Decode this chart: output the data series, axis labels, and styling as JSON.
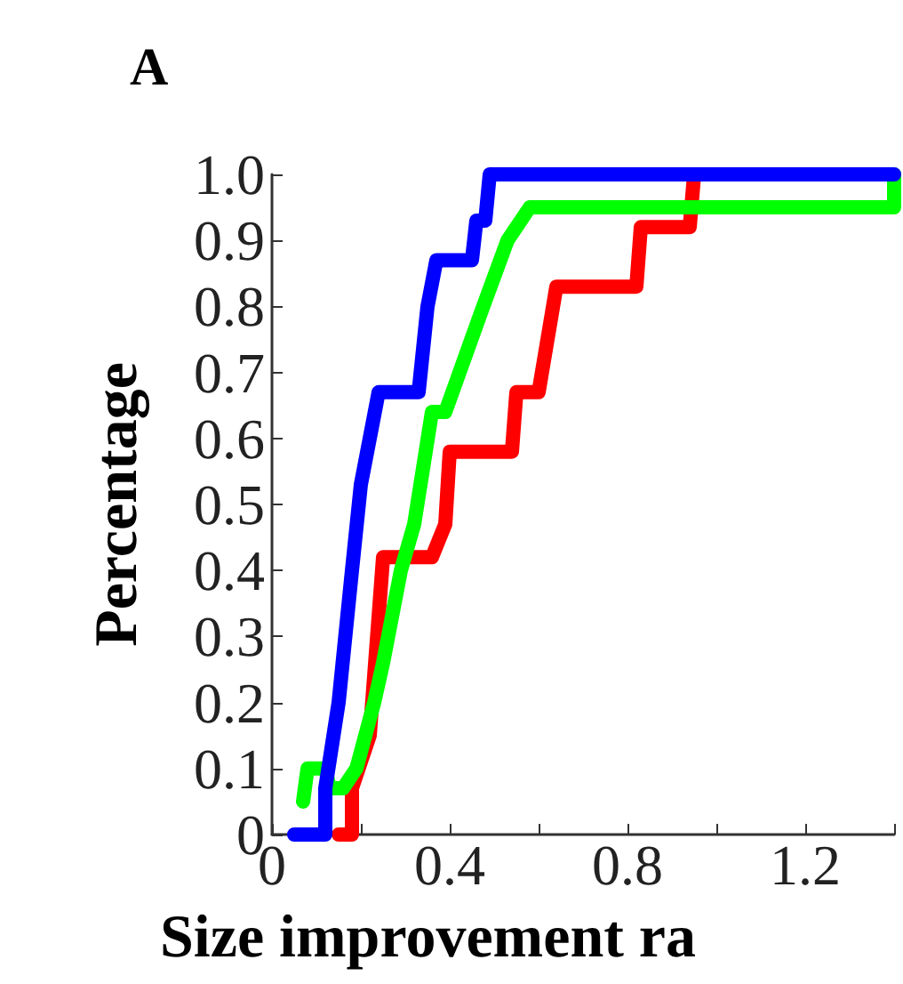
{
  "chart_data": {
    "type": "line",
    "xlabel": "Size improvement ra",
    "ylabel": "Percentage",
    "annotations": [
      "A"
    ],
    "xlim": [
      0,
      1.4
    ],
    "xticks": [
      0,
      {
        "value": 0.2,
        "label": null
      },
      0.4,
      {
        "value": 0.6,
        "label": null
      },
      0.8,
      {
        "value": 1.0,
        "label": null
      },
      1.2,
      {
        "value": 1.4,
        "label": null
      }
    ],
    "ylim": [
      0,
      1
    ],
    "yticks": [
      0,
      0.1,
      0.2,
      0.3,
      0.4,
      0.5,
      0.6,
      0.7,
      0.8,
      0.9,
      {
        "value": 1,
        "label": "1.0"
      }
    ],
    "marker": "none",
    "line_style": "solid",
    "series": [
      {
        "color": "#ff0000",
        "x": [
          0.15,
          0.18,
          0.18,
          0.22,
          0.25,
          0.36,
          0.39,
          0.4,
          0.54,
          0.55,
          0.6,
          0.62,
          0.64,
          0.82,
          0.83,
          0.94,
          0.95
        ],
        "values": [
          0,
          0,
          0.07,
          0.15,
          0.42,
          0.42,
          0.47,
          0.58,
          0.58,
          0.67,
          0.67,
          0.75,
          0.83,
          0.83,
          0.92,
          0.92,
          1.0
        ]
      },
      {
        "color": "#00ff00",
        "x": [
          0.07,
          0.08,
          0.12,
          0.13,
          0.16,
          0.19,
          0.23,
          0.25,
          0.29,
          0.32,
          0.36,
          0.39,
          0.47,
          0.53,
          0.58,
          1.4,
          1.4
        ],
        "values": [
          0.05,
          0.1,
          0.1,
          0.07,
          0.07,
          0.1,
          0.2,
          0.26,
          0.4,
          0.47,
          0.64,
          0.64,
          0.79,
          0.9,
          0.95,
          0.95,
          1.0
        ]
      },
      {
        "color": "#0000ff",
        "x": [
          0.05,
          0.12,
          0.12,
          0.15,
          0.18,
          0.2,
          0.22,
          0.24,
          0.33,
          0.35,
          0.37,
          0.45,
          0.46,
          0.48,
          0.49,
          1.4
        ],
        "values": [
          0,
          0,
          0.07,
          0.2,
          0.4,
          0.53,
          0.6,
          0.67,
          0.67,
          0.8,
          0.87,
          0.87,
          0.93,
          0.93,
          1.0,
          1.0
        ]
      }
    ]
  }
}
